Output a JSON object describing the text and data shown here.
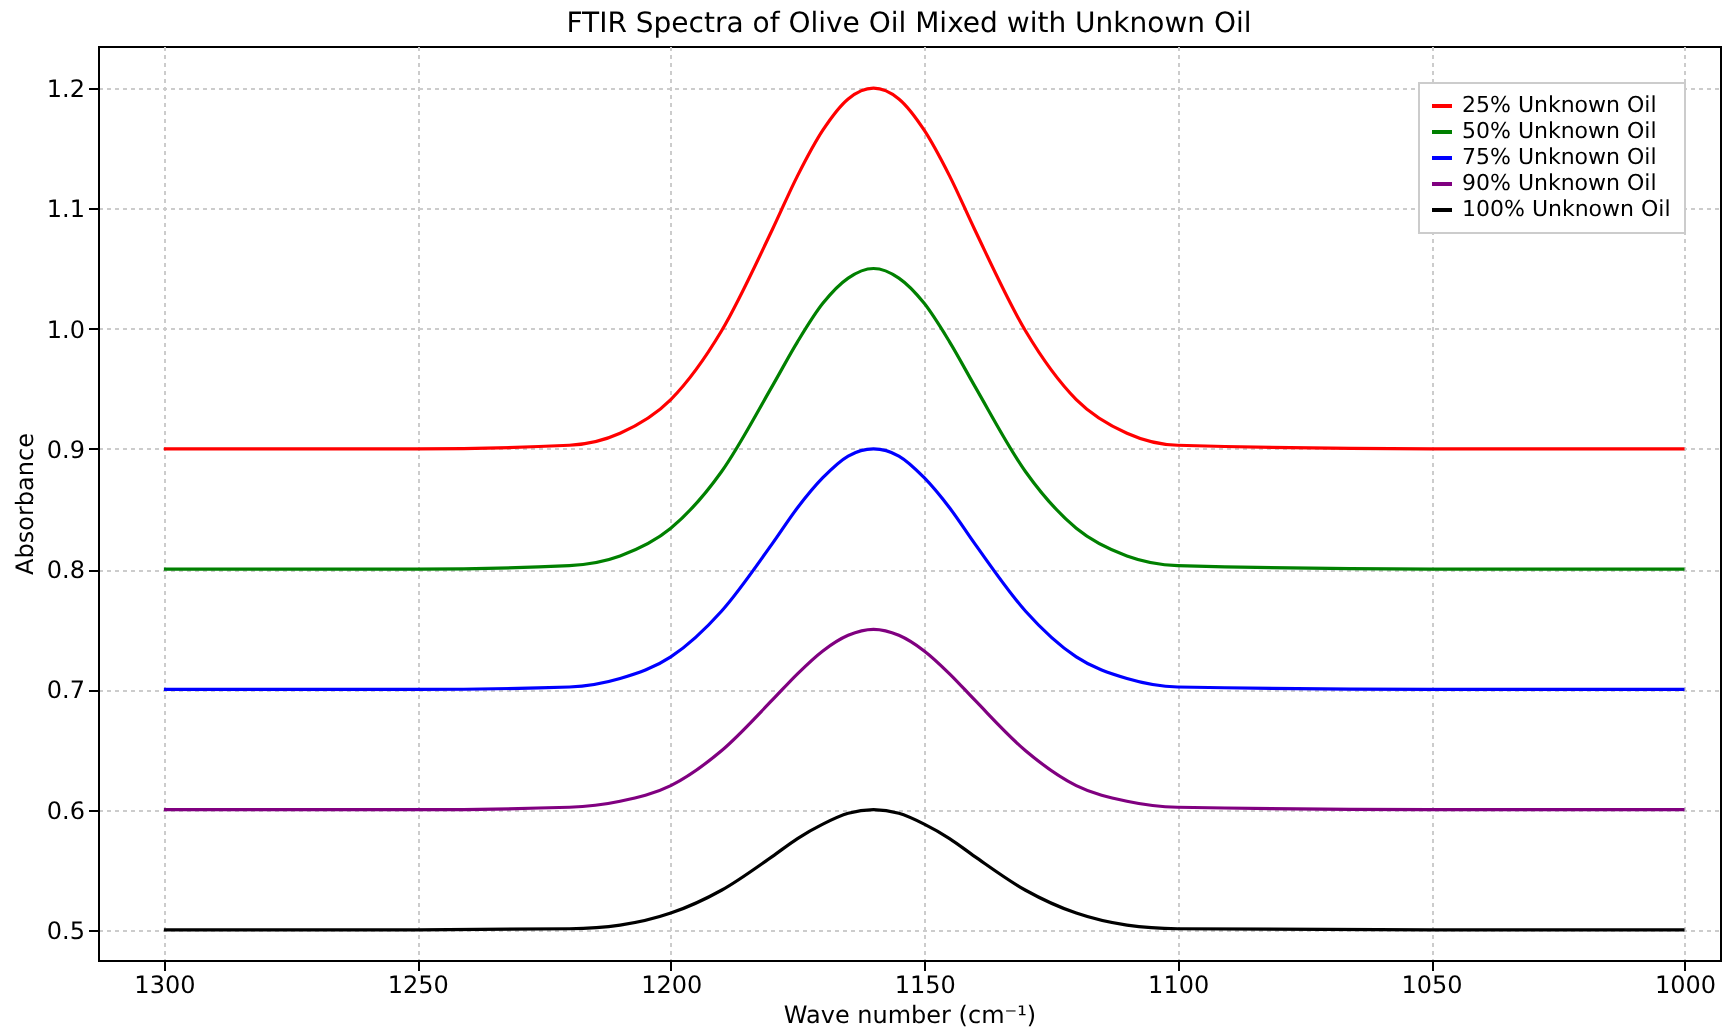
{
  "chart_data": {
    "type": "line",
    "title": "FTIR Spectra of Olive Oil Mixed with Unknown Oil",
    "xlabel": "Wave number (cm⁻¹)",
    "ylabel": "Absorbance",
    "x": [
      1300,
      1250,
      1220,
      1210,
      1200,
      1190,
      1180,
      1175,
      1170,
      1165,
      1160,
      1155,
      1150,
      1145,
      1140,
      1130,
      1120,
      1110,
      1100,
      1050,
      1000
    ],
    "series": [
      {
        "name": "25% Unknown Oil",
        "color": "#ff0000",
        "values": [
          0.9,
          0.9,
          0.903,
          0.913,
          0.941,
          0.998,
          1.082,
          1.127,
          1.165,
          1.191,
          1.2,
          1.191,
          1.165,
          1.127,
          1.082,
          0.998,
          0.941,
          0.913,
          0.903,
          0.9,
          0.9
        ]
      },
      {
        "name": "50% Unknown Oil",
        "color": "#008000",
        "values": [
          0.8,
          0.8,
          0.803,
          0.811,
          0.834,
          0.881,
          0.952,
          0.989,
          1.021,
          1.042,
          1.05,
          1.042,
          1.021,
          0.989,
          0.952,
          0.881,
          0.834,
          0.811,
          0.803,
          0.8,
          0.8
        ]
      },
      {
        "name": "75% Unknown Oil",
        "color": "#0000ff",
        "values": [
          0.7,
          0.7,
          0.702,
          0.709,
          0.727,
          0.765,
          0.821,
          0.851,
          0.876,
          0.894,
          0.9,
          0.894,
          0.876,
          0.851,
          0.821,
          0.765,
          0.727,
          0.709,
          0.702,
          0.7,
          0.7
        ]
      },
      {
        "name": "90% Unknown Oil",
        "color": "#800080",
        "values": [
          0.6,
          0.6,
          0.602,
          0.607,
          0.62,
          0.649,
          0.691,
          0.713,
          0.732,
          0.745,
          0.75,
          0.745,
          0.732,
          0.713,
          0.691,
          0.649,
          0.62,
          0.607,
          0.602,
          0.6,
          0.6
        ]
      },
      {
        "name": "100% Unknown Oil",
        "color": "#000000",
        "values": [
          0.5,
          0.5,
          0.501,
          0.504,
          0.514,
          0.533,
          0.561,
          0.576,
          0.588,
          0.597,
          0.6,
          0.597,
          0.588,
          0.576,
          0.561,
          0.533,
          0.514,
          0.504,
          0.501,
          0.5,
          0.5
        ]
      }
    ],
    "xlim": [
      1313,
      993
    ],
    "xticks": [
      1300,
      1250,
      1200,
      1150,
      1100,
      1050,
      1000
    ],
    "ylim": [
      0.475,
      1.235
    ],
    "yticks": [
      0.5,
      0.6,
      0.7,
      0.8,
      0.9,
      {
        "value": 1,
        "label": "1.0"
      },
      1.1,
      1.2
    ],
    "grid": true,
    "legend": "top right",
    "marker": "none",
    "line_style": "solid"
  }
}
